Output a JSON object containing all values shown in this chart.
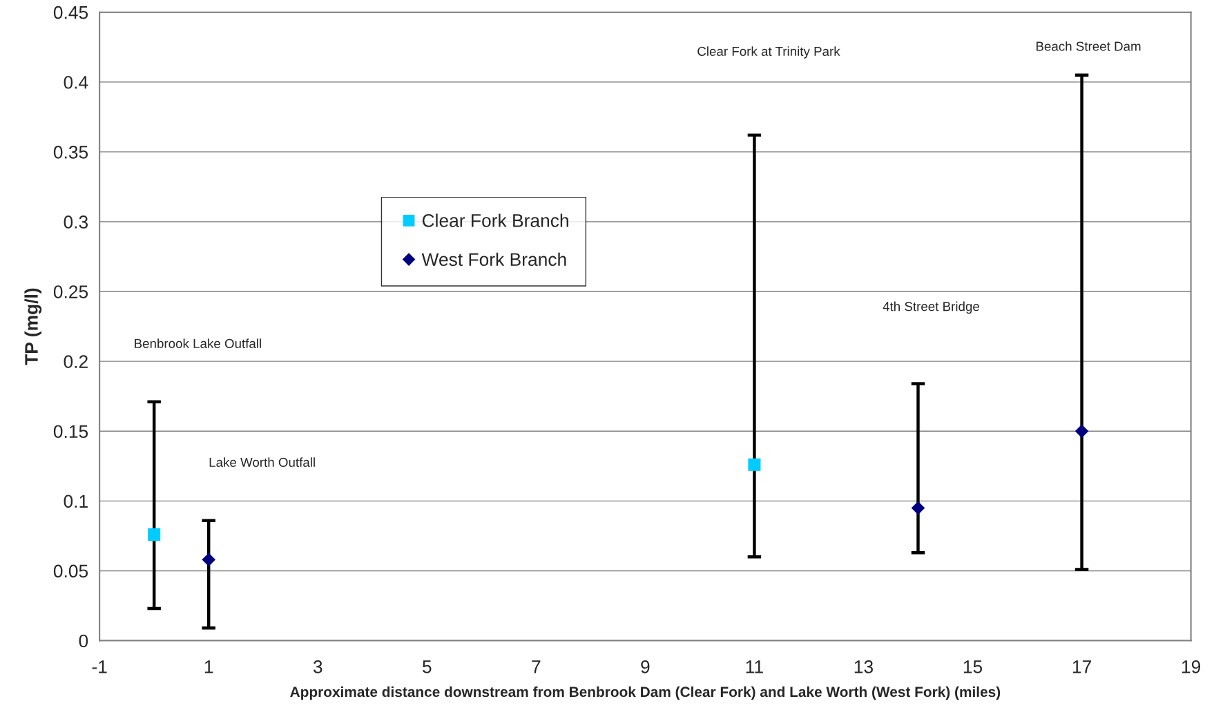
{
  "chart_data": {
    "type": "scatter",
    "xlabel": "Approximate distance downstream from Benbrook Dam (Clear Fork) and Lake Worth (West Fork) (miles)",
    "ylabel": "TP (mg/l)",
    "xlim": [
      -1,
      19
    ],
    "xticks": [
      -1,
      1,
      3,
      5,
      7,
      9,
      11,
      13,
      15,
      17,
      19
    ],
    "ylim": [
      0,
      0.45
    ],
    "yticks": [
      0,
      0.05,
      0.1,
      0.15,
      0.2,
      0.25,
      0.3,
      0.35,
      0.4,
      0.45
    ],
    "grid": "y",
    "legend": "top left",
    "series": [
      {
        "name": "Clear Fork Branch",
        "color": "#00ccff",
        "marker": "square",
        "x": [
          0,
          11
        ],
        "values": [
          0.076,
          0.126
        ],
        "errors": [
          [
            0.023,
            0.171
          ],
          [
            0.06,
            0.362
          ]
        ]
      },
      {
        "name": "West Fork Branch",
        "color": "#000080",
        "marker": "diamond",
        "x": [
          1,
          14,
          17
        ],
        "values": [
          0.058,
          0.095,
          0.15
        ],
        "errors": [
          [
            0.009,
            0.086
          ],
          [
            0.063,
            0.184
          ],
          [
            0.051,
            0.405
          ]
        ]
      }
    ],
    "annotations": [
      "Benbrook Lake Outfall",
      "Lake Worth Outfall",
      "Clear Fork at Trinity Park",
      "4th Street Bridge",
      "Beach Street Dam"
    ]
  }
}
